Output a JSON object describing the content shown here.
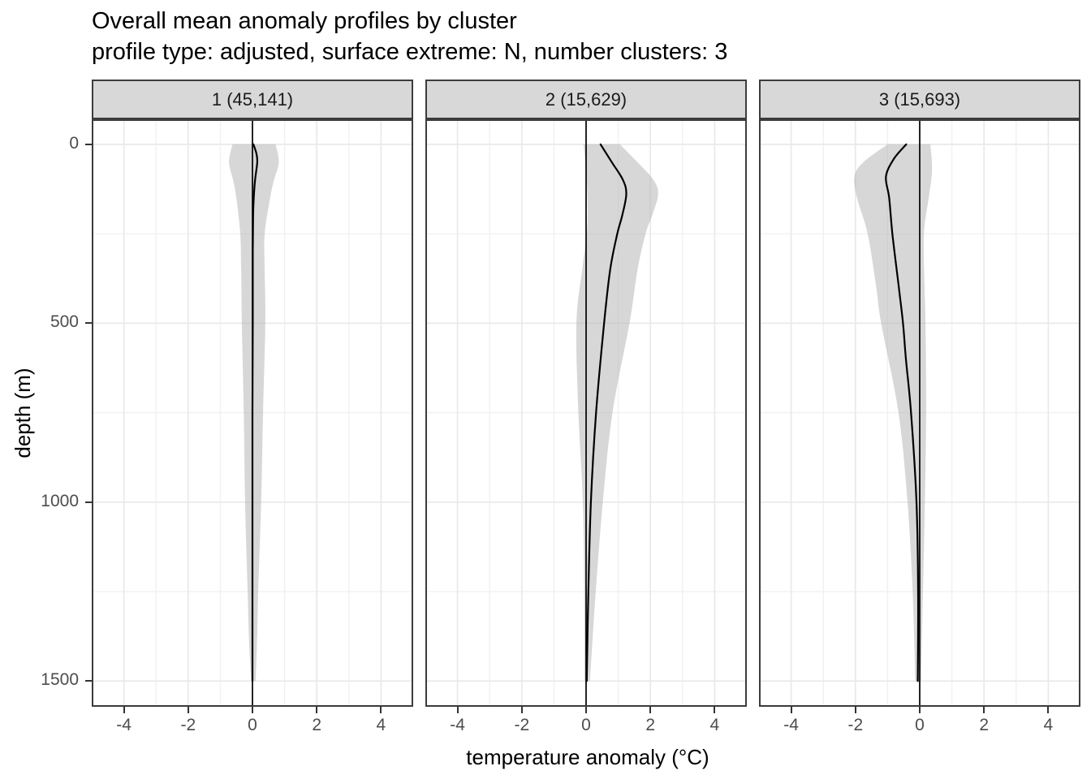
{
  "chart_data": {
    "type": "line",
    "title": "Overall mean anomaly profiles by cluster",
    "subtitle": "profile type: adjusted, surface extreme: N, number clusters: 3",
    "xlabel": "temperature anomaly (°C)",
    "ylabel": "depth (m)",
    "xlim": [
      -5,
      5
    ],
    "ylim": [
      -70,
      1572
    ],
    "y_axis_reversed": true,
    "grid": true,
    "legend_position": "none",
    "x_ticks": [
      -4,
      -2,
      0,
      2,
      4
    ],
    "x_minor": [
      -3,
      -1,
      1,
      3
    ],
    "y_ticks": [
      0,
      500,
      1000,
      1500
    ],
    "y_minor": [
      250,
      750,
      1250
    ],
    "facets": [
      {
        "label": "1 (45,141)",
        "cluster": 1,
        "n_profiles": 45141,
        "vline_x": 0,
        "mean": [
          [
            0,
            0.03
          ],
          [
            25,
            0.12
          ],
          [
            50,
            0.15
          ],
          [
            100,
            0.08
          ],
          [
            150,
            0.04
          ],
          [
            200,
            0.02
          ],
          [
            300,
            0.01
          ],
          [
            500,
            0.01
          ],
          [
            750,
            0.0
          ],
          [
            1000,
            0.0
          ],
          [
            1250,
            0.0
          ],
          [
            1500,
            0.0
          ]
        ],
        "band": [
          [
            0,
            -0.62,
            0.72
          ],
          [
            50,
            -0.73,
            0.82
          ],
          [
            100,
            -0.6,
            0.67
          ],
          [
            150,
            -0.5,
            0.55
          ],
          [
            250,
            -0.38,
            0.38
          ],
          [
            350,
            -0.35,
            0.38
          ],
          [
            500,
            -0.33,
            0.4
          ],
          [
            750,
            -0.27,
            0.33
          ],
          [
            1000,
            -0.23,
            0.27
          ],
          [
            1250,
            -0.15,
            0.18
          ],
          [
            1400,
            -0.1,
            0.14
          ],
          [
            1500,
            -0.04,
            0.1
          ]
        ]
      },
      {
        "label": "2 (15,629)",
        "cluster": 2,
        "n_profiles": 15629,
        "vline_x": 0,
        "mean": [
          [
            0,
            0.45
          ],
          [
            50,
            0.8
          ],
          [
            100,
            1.15
          ],
          [
            140,
            1.25
          ],
          [
            200,
            1.12
          ],
          [
            250,
            0.97
          ],
          [
            350,
            0.75
          ],
          [
            500,
            0.56
          ],
          [
            750,
            0.31
          ],
          [
            1000,
            0.15
          ],
          [
            1250,
            0.07
          ],
          [
            1500,
            0.02
          ]
        ],
        "band": [
          [
            0,
            -0.08,
            1.05
          ],
          [
            50,
            -0.02,
            1.6
          ],
          [
            100,
            0.02,
            2.1
          ],
          [
            140,
            0.04,
            2.24
          ],
          [
            200,
            0.05,
            2.05
          ],
          [
            250,
            0.02,
            1.85
          ],
          [
            350,
            -0.12,
            1.6
          ],
          [
            500,
            -0.3,
            1.35
          ],
          [
            750,
            -0.24,
            0.82
          ],
          [
            1000,
            -0.1,
            0.52
          ],
          [
            1250,
            -0.06,
            0.3
          ],
          [
            1500,
            -0.05,
            0.12
          ]
        ]
      },
      {
        "label": "3 (15,693)",
        "cluster": 3,
        "n_profiles": 15693,
        "vline_x": 0,
        "mean": [
          [
            0,
            -0.42
          ],
          [
            40,
            -0.8
          ],
          [
            90,
            -1.05
          ],
          [
            150,
            -0.95
          ],
          [
            250,
            -0.85
          ],
          [
            400,
            -0.65
          ],
          [
            500,
            -0.52
          ],
          [
            600,
            -0.43
          ],
          [
            750,
            -0.27
          ],
          [
            1000,
            -0.1
          ],
          [
            1250,
            -0.05
          ],
          [
            1500,
            -0.06
          ]
        ],
        "band": [
          [
            0,
            -1.0,
            0.33
          ],
          [
            50,
            -1.75,
            0.38
          ],
          [
            90,
            -2.03,
            0.37
          ],
          [
            150,
            -1.95,
            0.28
          ],
          [
            250,
            -1.62,
            0.13
          ],
          [
            400,
            -1.35,
            0.15
          ],
          [
            500,
            -1.2,
            0.18
          ],
          [
            750,
            -0.66,
            0.2
          ],
          [
            1000,
            -0.38,
            0.16
          ],
          [
            1250,
            -0.22,
            0.1
          ],
          [
            1500,
            -0.14,
            0.04
          ]
        ]
      }
    ]
  },
  "colors": {
    "line": "#000000",
    "vline": "#000000",
    "ribbon": "rgba(176,176,176,0.5)",
    "grid_major": "#e9e9e9",
    "grid_minor": "#f0f0f0",
    "panel_bg": "#ffffff",
    "panel_border": "#3c3c3c",
    "strip_bg": "#d8d8d8",
    "strip_border": "#3c3c3c",
    "tick_mark": "#333333",
    "tick_label": "#4d4d4d",
    "text": "#000000"
  }
}
